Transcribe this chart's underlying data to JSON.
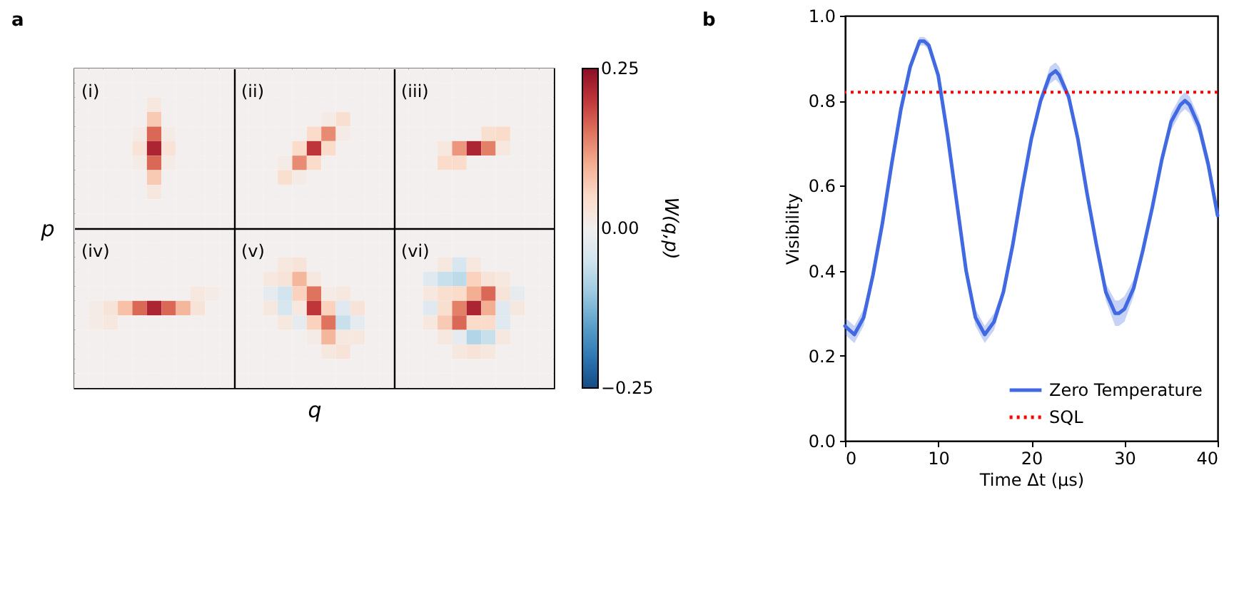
{
  "chart_data": [
    {
      "type": "heatmap",
      "title": "a",
      "xlabel": "q",
      "ylabel": "p",
      "clabel": "W(q,p)",
      "annotations": [
        "(i)",
        "(ii)",
        "(iii)",
        "(iv)",
        "(v)",
        "(vi)"
      ],
      "categories": [
        null,
        null,
        null,
        null,
        null,
        null,
        null,
        null,
        null,
        null,
        null,
        null,
        null,
        null,
        null,
        null,
        null,
        null,
        null,
        null,
        null,
        null,
        null,
        null,
        null,
        null,
        null,
        null,
        null,
        null,
        null,
        null,
        null
      ],
      "y_categories": [
        null,
        null,
        null,
        null,
        null,
        null,
        null,
        null,
        null,
        null,
        null,
        null,
        null,
        null,
        null,
        null,
        null,
        null,
        null,
        null,
        null,
        null
      ],
      "cells": [
        [
          0,
          0,
          0,
          0,
          0,
          0,
          0,
          0,
          0,
          0,
          0,
          0,
          0,
          0,
          0,
          0,
          0,
          0,
          0,
          0,
          0,
          0,
          0,
          0,
          0,
          0,
          0,
          0,
          0,
          0,
          0,
          0,
          0
        ],
        [
          0,
          0,
          0,
          0,
          0,
          0,
          0,
          0,
          0,
          0,
          0,
          0,
          0,
          0,
          0,
          0,
          0,
          0,
          0,
          0,
          0,
          0,
          0,
          0,
          0,
          0,
          0,
          0,
          0,
          0,
          0,
          0,
          0
        ],
        [
          0,
          0,
          0,
          0,
          0,
          0.02,
          0,
          0,
          0,
          0,
          0,
          0,
          0,
          0,
          0,
          0,
          0,
          0,
          0,
          0,
          0,
          0,
          0,
          0,
          0,
          0,
          0,
          0,
          0,
          0,
          0,
          0,
          0
        ],
        [
          0,
          0,
          0,
          0,
          0,
          0.07,
          0,
          0,
          0,
          0,
          0,
          0,
          0,
          0,
          0,
          0,
          0,
          0.01,
          0.04,
          0,
          0,
          0,
          0,
          0,
          0,
          0,
          0,
          0,
          0,
          0,
          0,
          0,
          0
        ],
        [
          0,
          0,
          0,
          0,
          0.01,
          0.16,
          0.01,
          0,
          0,
          0,
          0,
          0,
          0,
          0,
          0,
          0,
          0.05,
          0.13,
          0.01,
          0,
          0,
          0,
          0,
          0,
          0,
          0,
          0,
          0,
          0.04,
          0.05,
          0,
          0,
          0
        ],
        [
          0,
          0,
          0,
          0,
          0.03,
          0.22,
          0.03,
          0,
          0,
          0,
          0,
          0,
          0,
          0,
          0,
          0.05,
          0.2,
          0.05,
          0,
          0,
          0,
          0,
          0,
          0,
          0,
          0.02,
          0.12,
          0.22,
          0.14,
          0.02,
          0,
          0,
          0
        ],
        [
          0,
          0,
          0,
          0,
          0.01,
          0.16,
          0.01,
          0,
          0,
          0,
          0,
          0,
          0,
          0,
          0.01,
          0.13,
          0.05,
          0,
          0,
          0,
          0,
          0,
          0,
          0,
          0,
          0.05,
          0.05,
          0,
          0,
          0,
          0,
          0,
          0
        ],
        [
          0,
          0,
          0,
          0,
          0,
          0.07,
          0,
          0,
          0,
          0,
          0,
          0,
          0,
          0,
          0.04,
          0.01,
          0,
          0,
          0,
          0,
          0,
          0,
          0,
          0,
          0,
          0,
          0,
          0,
          0,
          0,
          0,
          0,
          0
        ],
        [
          0,
          0,
          0,
          0,
          0,
          0.02,
          0,
          0,
          0,
          0,
          0,
          0,
          0,
          0,
          0,
          0,
          0,
          0,
          0,
          0,
          0,
          0,
          0,
          0,
          0,
          0,
          0,
          0,
          0,
          0,
          0,
          0,
          0
        ],
        [
          0,
          0,
          0,
          0,
          0,
          0,
          0,
          0,
          0,
          0,
          0,
          0,
          0,
          0,
          0,
          0,
          0,
          0,
          0,
          0,
          0,
          0,
          0,
          0,
          0,
          0,
          0,
          0,
          0,
          0,
          0,
          0,
          0
        ],
        [
          0,
          0,
          0,
          0,
          0,
          0,
          0,
          0,
          0,
          0,
          0,
          0,
          0,
          0,
          0,
          0,
          0,
          0,
          0,
          0,
          0,
          0,
          0,
          0,
          0,
          0,
          0,
          0,
          0,
          0,
          0,
          0,
          0
        ],
        [
          0,
          0,
          0,
          0,
          0,
          0,
          0,
          0,
          0,
          0,
          0,
          0,
          0,
          0,
          0,
          0,
          0,
          0,
          0,
          0,
          0,
          0,
          0,
          0,
          0,
          0,
          0,
          0,
          0,
          0,
          0,
          0,
          0
        ],
        [
          0,
          0,
          0,
          0,
          0,
          0,
          0,
          0,
          0,
          0,
          0,
          0,
          0,
          0,
          0,
          0,
          0,
          0,
          0,
          0,
          0,
          0,
          0,
          0,
          0,
          0,
          0,
          0,
          0,
          0,
          0,
          0,
          0
        ],
        [
          0,
          0,
          0,
          0,
          0,
          0,
          0,
          0,
          0,
          0,
          0,
          0,
          0,
          0,
          0.02,
          0.03,
          0,
          0,
          0,
          0,
          0,
          0,
          0,
          0,
          0,
          0.02,
          -0.04,
          0.02,
          0,
          0,
          0,
          0,
          0
        ],
        [
          0,
          0,
          0,
          0,
          0,
          0,
          0,
          0,
          0,
          0,
          0,
          0,
          0,
          0.02,
          0.03,
          0.09,
          0.02,
          0,
          0,
          0,
          0,
          0,
          0,
          0,
          -0.03,
          -0.06,
          -0.07,
          0.06,
          0.03,
          0.02,
          0,
          0,
          0
        ],
        [
          0,
          0,
          0,
          0,
          0,
          0,
          0,
          0,
          0.02,
          0.01,
          0,
          0,
          0,
          -0.02,
          -0.05,
          0.06,
          0.15,
          0.01,
          0.02,
          0,
          0,
          0,
          0,
          0,
          0.02,
          0.04,
          0.05,
          0.1,
          0.16,
          0.03,
          -0.02,
          0,
          0
        ],
        [
          0,
          0.01,
          0.03,
          0.08,
          0.16,
          0.22,
          0.16,
          0.09,
          0.03,
          0,
          0,
          0,
          0,
          0.02,
          -0.04,
          0.02,
          0.2,
          0.06,
          -0.03,
          0.03,
          0,
          0,
          0,
          0,
          -0.03,
          0.04,
          0.14,
          0.22,
          0.1,
          -0.03,
          0.02,
          0,
          0
        ],
        [
          0,
          0.01,
          0.02,
          0,
          0,
          0,
          0,
          0,
          0,
          0,
          0,
          0,
          0,
          0,
          0.02,
          -0.02,
          0.06,
          0.15,
          -0.06,
          -0.02,
          0,
          0,
          0,
          0,
          0.02,
          0.07,
          0.16,
          0.05,
          0.05,
          -0.03,
          0,
          0,
          0
        ],
        [
          0,
          0,
          0,
          0,
          0,
          0,
          0,
          0,
          0,
          0,
          0,
          0,
          0,
          0,
          0,
          0,
          0.01,
          0.09,
          0.02,
          0.02,
          0,
          0,
          0,
          0,
          0,
          0.02,
          -0.02,
          -0.08,
          -0.06,
          0.02,
          0,
          0,
          0
        ],
        [
          0,
          0,
          0,
          0,
          0,
          0,
          0,
          0,
          0,
          0,
          0,
          0,
          0,
          0,
          0,
          0,
          0,
          0.02,
          0.03,
          0,
          0,
          0,
          0,
          0,
          0,
          0,
          0.02,
          0.03,
          0.02,
          0,
          0,
          0,
          0
        ],
        [
          0,
          0,
          0,
          0,
          0,
          0,
          0,
          0,
          0,
          0,
          0,
          0,
          0,
          0,
          0,
          0,
          0,
          0,
          0,
          0,
          0,
          0,
          0,
          0,
          0,
          0,
          0,
          0,
          0,
          0,
          0,
          0,
          0
        ],
        [
          0,
          0,
          0,
          0,
          0,
          0,
          0,
          0,
          0,
          0,
          0,
          0,
          0,
          0,
          0,
          0,
          0,
          0,
          0,
          0,
          0,
          0,
          0,
          0,
          0,
          0,
          0,
          0,
          0,
          0,
          0,
          0,
          0
        ]
      ],
      "clim": [
        -0.25,
        0.25
      ],
      "cticks": [
        {
          "value": 0.25,
          "label": "0.25"
        },
        {
          "value": 0,
          "label": "0.00"
        },
        {
          "value": -0.25,
          "label": "−0.25"
        }
      ]
    },
    {
      "type": "line",
      "title": "b",
      "xlabel": "Time Δt (μs)",
      "ylabel": "Visibility",
      "x": [
        0,
        1,
        2,
        3,
        4,
        5,
        6,
        7,
        8,
        8.5,
        9,
        10,
        11,
        12,
        13,
        14,
        15,
        16,
        17,
        18,
        19,
        20,
        21,
        22,
        22.6,
        23,
        24,
        25,
        26,
        27,
        28,
        29,
        29.4,
        30,
        31,
        32,
        33,
        34,
        35,
        36,
        36.5,
        37,
        38,
        39,
        40
      ],
      "series": [
        {
          "name": "Zero Temperature",
          "color": "#4169e1",
          "values": [
            0.27,
            0.25,
            0.29,
            0.39,
            0.51,
            0.65,
            0.78,
            0.88,
            0.94,
            0.94,
            0.93,
            0.86,
            0.72,
            0.56,
            0.4,
            0.29,
            0.25,
            0.28,
            0.35,
            0.46,
            0.59,
            0.71,
            0.8,
            0.86,
            0.87,
            0.86,
            0.81,
            0.71,
            0.58,
            0.46,
            0.35,
            0.3,
            0.3,
            0.31,
            0.36,
            0.45,
            0.55,
            0.66,
            0.75,
            0.79,
            0.8,
            0.79,
            0.74,
            0.65,
            0.53
          ],
          "lower": [
            0.25,
            0.23,
            0.27,
            0.38,
            0.5,
            0.64,
            0.77,
            0.87,
            0.93,
            0.93,
            0.92,
            0.85,
            0.71,
            0.55,
            0.39,
            0.27,
            0.23,
            0.26,
            0.34,
            0.45,
            0.58,
            0.7,
            0.79,
            0.84,
            0.85,
            0.84,
            0.8,
            0.7,
            0.57,
            0.45,
            0.33,
            0.27,
            0.27,
            0.28,
            0.34,
            0.44,
            0.54,
            0.65,
            0.73,
            0.77,
            0.78,
            0.77,
            0.72,
            0.63,
            0.51
          ],
          "upper": [
            0.29,
            0.27,
            0.31,
            0.4,
            0.52,
            0.66,
            0.79,
            0.89,
            0.95,
            0.95,
            0.94,
            0.87,
            0.73,
            0.57,
            0.41,
            0.31,
            0.27,
            0.3,
            0.36,
            0.47,
            0.6,
            0.72,
            0.81,
            0.88,
            0.89,
            0.88,
            0.82,
            0.72,
            0.59,
            0.47,
            0.37,
            0.33,
            0.33,
            0.34,
            0.38,
            0.46,
            0.56,
            0.67,
            0.77,
            0.81,
            0.82,
            0.81,
            0.76,
            0.67,
            0.55
          ]
        }
      ],
      "xlim": [
        0,
        40
      ],
      "xticks": [
        0,
        10,
        20,
        30,
        40
      ],
      "ylim": [
        0,
        1
      ],
      "yticks": [
        {
          "value": 0,
          "label": "0.0"
        },
        0.2,
        0.4,
        0.6,
        0.8,
        {
          "value": 1,
          "label": "1.0"
        }
      ],
      "ref_lines": [
        {
          "axis": "y",
          "value": 0.82,
          "label": "SQL",
          "color": "#ff0000",
          "line_style": "dotted"
        }
      ],
      "legend": "bottom right"
    }
  ]
}
